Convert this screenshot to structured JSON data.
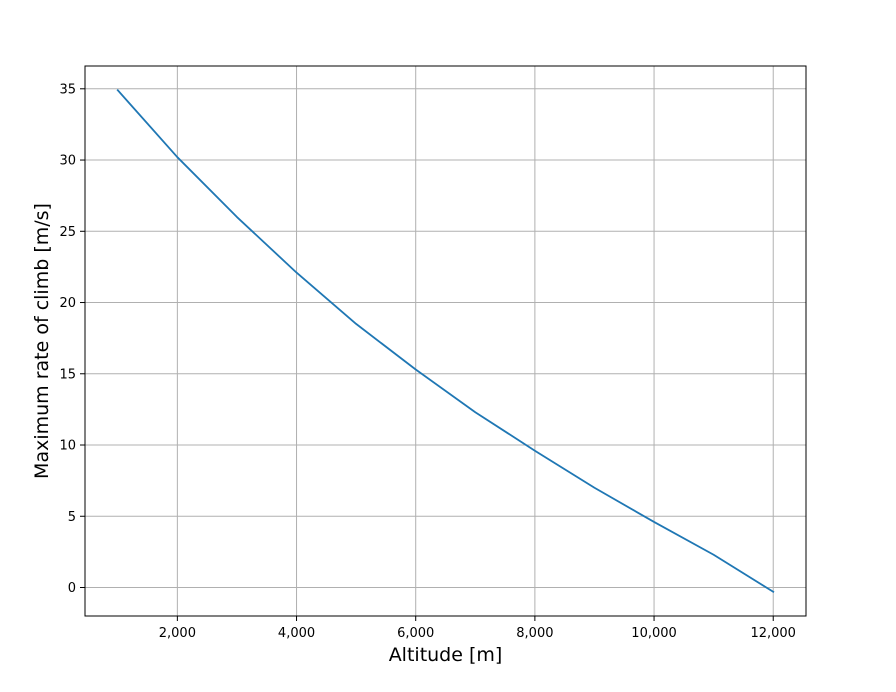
{
  "chart_data": {
    "type": "line",
    "title": "",
    "xlabel": "Altitude [m]",
    "ylabel": "Maximum rate of climb [m/s]",
    "xlim": [
      450,
      12550
    ],
    "ylim": [
      -2,
      36.6
    ],
    "grid": true,
    "x_ticks": [
      {
        "value": 2000,
        "label": "2,000"
      },
      {
        "value": 4000,
        "label": "4,000"
      },
      {
        "value": 6000,
        "label": "6,000"
      },
      {
        "value": 8000,
        "label": "8,000"
      },
      {
        "value": 10000,
        "label": "10,000"
      },
      {
        "value": 12000,
        "label": "12,000"
      }
    ],
    "y_ticks": [
      {
        "value": 0,
        "label": "0"
      },
      {
        "value": 5,
        "label": "5"
      },
      {
        "value": 10,
        "label": "10"
      },
      {
        "value": 15,
        "label": "15"
      },
      {
        "value": 20,
        "label": "20"
      },
      {
        "value": 25,
        "label": "25"
      },
      {
        "value": 30,
        "label": "30"
      },
      {
        "value": 35,
        "label": "35"
      }
    ],
    "series": [
      {
        "color": "#1f77b4",
        "x": [
          1000,
          2000,
          3000,
          4000,
          5000,
          6000,
          7000,
          8000,
          9000,
          10000,
          11000,
          12000
        ],
        "y": [
          34.9,
          30.2,
          26.0,
          22.1,
          18.5,
          15.3,
          12.3,
          9.6,
          7.0,
          4.6,
          2.3,
          -0.3
        ]
      }
    ]
  }
}
